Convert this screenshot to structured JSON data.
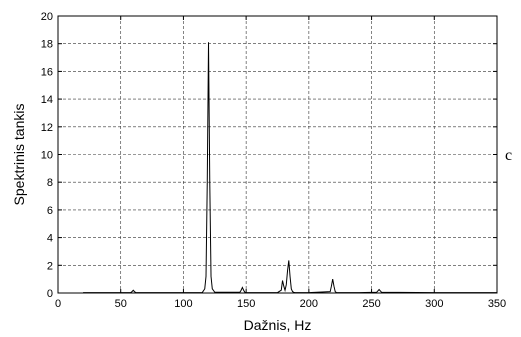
{
  "chart_data": {
    "type": "line",
    "xlabel": "Dažnis, Hz",
    "ylabel": "Spektrinis tankis",
    "side_label": "c",
    "xlim": [
      0,
      350
    ],
    "ylim": [
      0,
      20
    ],
    "xticks": [
      0,
      50,
      100,
      150,
      200,
      250,
      300,
      350
    ],
    "yticks": [
      0,
      2,
      4,
      6,
      8,
      10,
      12,
      14,
      16,
      18,
      20
    ],
    "grid": true,
    "series": [
      {
        "x": [
          20,
          58,
          59,
          60,
          61,
          62,
          100,
          115,
          117,
          118,
          119,
          120,
          121,
          122,
          123,
          125,
          145,
          146,
          147,
          148,
          149,
          150,
          175,
          178,
          179,
          180,
          181,
          182,
          183,
          184,
          185,
          186,
          187,
          188,
          189,
          200,
          217,
          218,
          219,
          220,
          221,
          222,
          240,
          254,
          255,
          256,
          257,
          258,
          300,
          350
        ],
        "values": [
          0.03,
          0.03,
          0.1,
          0.2,
          0.1,
          0.03,
          0.03,
          0.03,
          0.3,
          1.2,
          8.0,
          18.1,
          8.0,
          1.2,
          0.3,
          0.05,
          0.05,
          0.2,
          0.4,
          0.2,
          0.05,
          0.03,
          0.03,
          0.2,
          0.9,
          0.5,
          0.2,
          0.6,
          1.6,
          2.35,
          1.2,
          0.3,
          0.1,
          0.05,
          0.03,
          0.03,
          0.1,
          0.5,
          1.0,
          0.5,
          0.1,
          0.03,
          0.03,
          0.05,
          0.15,
          0.25,
          0.15,
          0.05,
          0.03,
          0.03
        ]
      }
    ]
  }
}
